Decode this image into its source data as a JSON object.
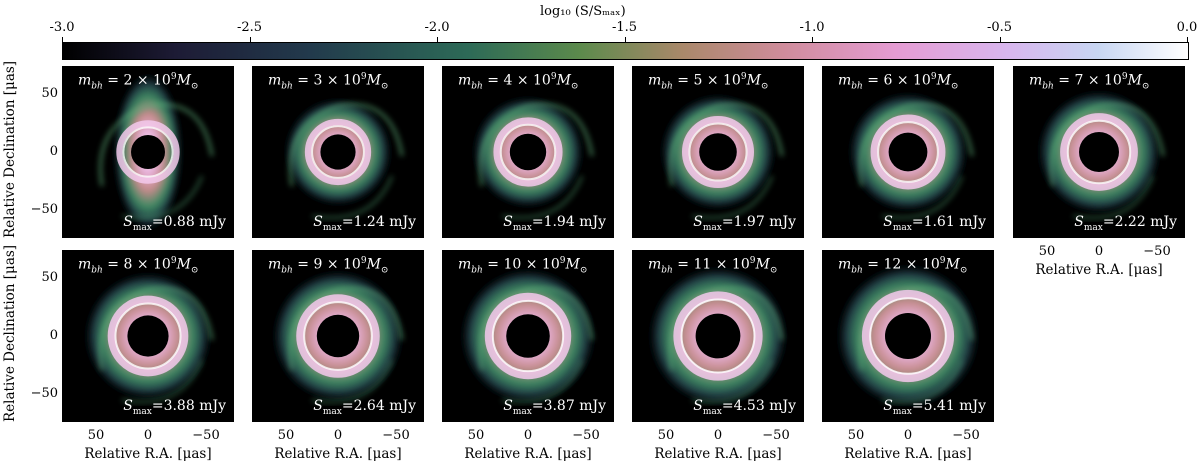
{
  "colorbar": {
    "label": "log₁₀ (S/Sₘₐₓ)",
    "ticks": [
      "-3.0",
      "-2.5",
      "-2.0",
      "-1.5",
      "-1.0",
      "-0.5",
      "0.0"
    ],
    "range": [
      -3.0,
      0.0
    ]
  },
  "colors": {
    "background": "#000000",
    "low": "#1d2a3a",
    "mid": "#3f9a66",
    "warm": "#c28a6f",
    "pink": "#e8a6d8",
    "high": "#f5f2ff"
  },
  "axes": {
    "y_label": "Relative Declination [μas]",
    "x_label": "Relative R.A. [μas]",
    "y_ticks": [
      "50",
      "0",
      "−50"
    ],
    "x_ticks": [
      "50",
      "0",
      "−50"
    ]
  },
  "panels": [
    {
      "m_base": "m",
      "m_sub": "bh",
      "m_mid": " = 2 × 10",
      "m_exp": "9",
      "m_tail": "M",
      "m_tail_sub": "⊙",
      "s_base": "S",
      "s_sub": "max",
      "s_value": "=0.88 mJy",
      "ring": 0.3
    },
    {
      "m_base": "m",
      "m_sub": "bh",
      "m_mid": " = 3 × 10",
      "m_exp": "9",
      "m_tail": "M",
      "m_tail_sub": "⊙",
      "s_base": "S",
      "s_sub": "max",
      "s_value": "=1.24 mJy",
      "ring": 0.36
    },
    {
      "m_base": "m",
      "m_sub": "bh",
      "m_mid": " = 4 × 10",
      "m_exp": "9",
      "m_tail": "M",
      "m_tail_sub": "⊙",
      "s_base": "S",
      "s_sub": "max",
      "s_value": "=1.94 mJy",
      "ring": 0.42
    },
    {
      "m_base": "m",
      "m_sub": "bh",
      "m_mid": " = 5 × 10",
      "m_exp": "9",
      "m_tail": "M",
      "m_tail_sub": "⊙",
      "s_base": "S",
      "s_sub": "max",
      "s_value": "=1.97 mJy",
      "ring": 0.48
    },
    {
      "m_base": "m",
      "m_sub": "bh",
      "m_mid": " = 6 × 10",
      "m_exp": "9",
      "m_tail": "M",
      "m_tail_sub": "⊙",
      "s_base": "S",
      "s_sub": "max",
      "s_value": "=1.61 mJy",
      "ring": 0.54
    },
    {
      "m_base": "m",
      "m_sub": "bh",
      "m_mid": " = 7 × 10",
      "m_exp": "9",
      "m_tail": "M",
      "m_tail_sub": "⊙",
      "s_base": "S",
      "s_sub": "max",
      "s_value": "=2.22 mJy",
      "ring": 0.6
    },
    {
      "m_base": "m",
      "m_sub": "bh",
      "m_mid": " = 8 × 10",
      "m_exp": "9",
      "m_tail": "M",
      "m_tail_sub": "⊙",
      "s_base": "S",
      "s_sub": "max",
      "s_value": "=3.88 mJy",
      "ring": 0.66
    },
    {
      "m_base": "m",
      "m_sub": "bh",
      "m_mid": " = 9 × 10",
      "m_exp": "9",
      "m_tail": "M",
      "m_tail_sub": "⊙",
      "s_base": "S",
      "s_sub": "max",
      "s_value": "=2.64 mJy",
      "ring": 0.72
    },
    {
      "m_base": "m",
      "m_sub": "bh",
      "m_mid": " = 10 × 10",
      "m_exp": "9",
      "m_tail": "M",
      "m_tail_sub": "⊙",
      "s_base": "S",
      "s_sub": "max",
      "s_value": "=3.87 mJy",
      "ring": 0.78
    },
    {
      "m_base": "m",
      "m_sub": "bh",
      "m_mid": " = 11 × 10",
      "m_exp": "9",
      "m_tail": "M",
      "m_tail_sub": "⊙",
      "s_base": "S",
      "s_sub": "max",
      "s_value": "=4.53 mJy",
      "ring": 0.84
    },
    {
      "m_base": "m",
      "m_sub": "bh",
      "m_mid": " = 12 × 10",
      "m_exp": "9",
      "m_tail": "M",
      "m_tail_sub": "⊙",
      "s_base": "S",
      "s_sub": "max",
      "s_value": "=5.41 mJy",
      "ring": 0.9
    }
  ]
}
